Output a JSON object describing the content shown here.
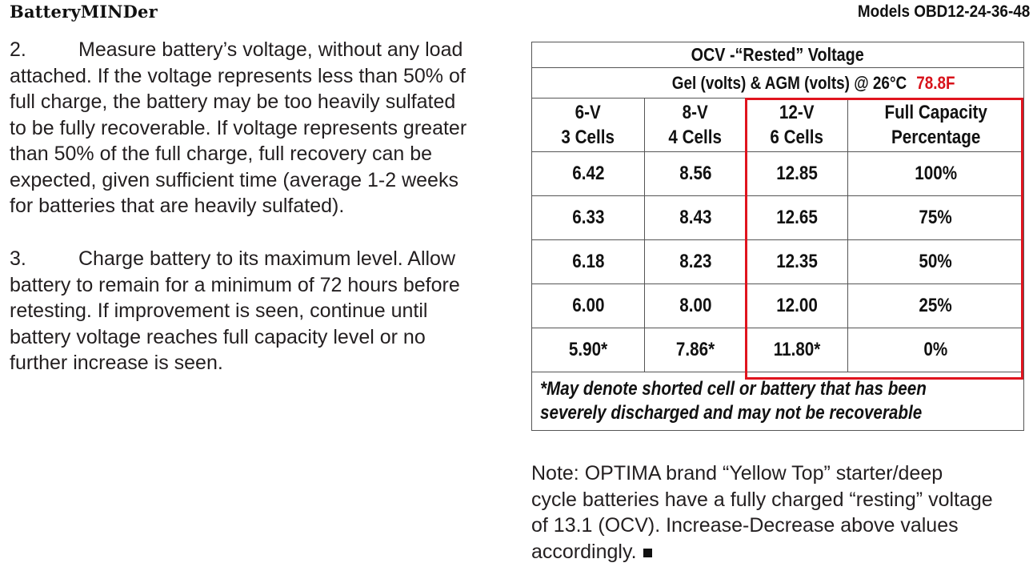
{
  "header": {
    "brand": "BatteryMINDer",
    "models": "Models OBD12-24-36-48"
  },
  "steps": [
    {
      "number": "2.",
      "text": "Measure battery’s voltage, without any load\nattached.  If the voltage represents less than 50% of\nfull charge, the battery may be too heavily sulfated\nto be fully recoverable.  If voltage represents greater\nthan 50% of the full charge, full recovery can be\nexpected, given sufficient time (average 1-2 weeks\nfor batteries that are heavily sulfated)."
    },
    {
      "number": "3.",
      "text": "Charge battery to its maximum level.  Allow\nbattery to remain for a minimum of 72 hours before\nretesting.  If improvement is seen, continue until\nbattery voltage reaches full capacity level or no\nfurther increase is seen."
    }
  ],
  "table": {
    "title": "OCV -“Rested” Voltage",
    "subtitle": "Gel (volts) & AGM (volts) @ 26°C",
    "subtitle_note": "78.8F",
    "highlight_color": "#e0141e",
    "columns": [
      {
        "line1": "6-V",
        "line2": "3 Cells"
      },
      {
        "line1": "8-V",
        "line2": "4 Cells"
      },
      {
        "line1": "12-V",
        "line2": "6 Cells"
      },
      {
        "line1": "Full Capacity",
        "line2": "Percentage"
      }
    ],
    "rows": [
      [
        "6.42",
        "8.56",
        "12.85",
        "100%"
      ],
      [
        "6.33",
        "8.43",
        "12.65",
        "75%"
      ],
      [
        "6.18",
        "8.23",
        "12.35",
        "50%"
      ],
      [
        "6.00",
        "8.00",
        "12.00",
        "25%"
      ],
      [
        "5.90*",
        "7.86*",
        "11.80*",
        "0%"
      ]
    ],
    "footnote_line1": "*May denote shorted cell or battery that has been",
    "footnote_line2": "severely discharged and may not be recoverable"
  },
  "note": "Note: OPTIMA brand “Yellow Top” starter/deep\ncycle batteries have a fully charged “resting” voltage\nof 13.1 (OCV).  Increase-Decrease above values\naccordingly."
}
